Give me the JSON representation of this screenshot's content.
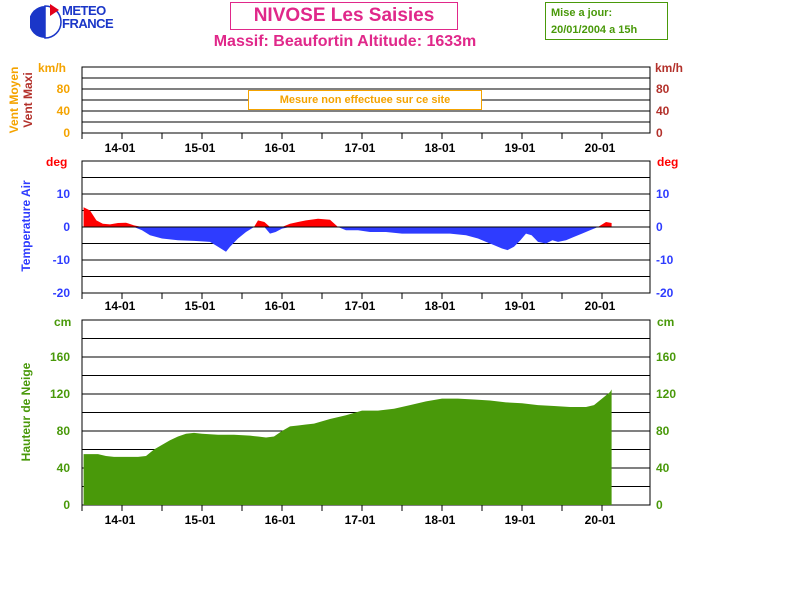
{
  "header": {
    "logo_line1": "METEO",
    "logo_line2": "FRANCE",
    "title": "NIVOSE Les Saisies",
    "subtitle": "Massif: Beaufortin Altitude: 1633m",
    "update_label": "Mise a jour:",
    "update_value": "20/01/2004 a 15h",
    "wind_notice": "Mesure non effectuee sur ce site"
  },
  "colors": {
    "snow": "#49990a",
    "temp_positive": "#ff0000",
    "temp_negative": "#2e3cff",
    "wind_mean": "#f4a300",
    "wind_max": "#b3312b",
    "title": "#e0288a",
    "temp_unit": "#ff0000",
    "temp_ticks": "#2e3cff"
  },
  "chart_data": [
    {
      "type": "line",
      "title": "",
      "ylabel_left": "Vent Moyen",
      "ylabel_right": "Vent Maxi",
      "unit_left": "km/h",
      "unit_right": "km/h",
      "yticks": [
        "0",
        "40",
        "80"
      ],
      "ylim": [
        0,
        120
      ],
      "xticks": [
        "14-01",
        "15-01",
        "16-01",
        "17-01",
        "18-01",
        "19-01",
        "20-01"
      ],
      "grid": true,
      "series": []
    },
    {
      "type": "area",
      "ylabel": "Temperature Air",
      "unit": "deg",
      "yticks": [
        "-20",
        "-10",
        "0",
        "10"
      ],
      "ylim": [
        -20,
        20
      ],
      "xticks": [
        "14-01",
        "15-01",
        "16-01",
        "17-01",
        "18-01",
        "19-01",
        "20-01"
      ],
      "xlim": [
        13.5,
        20.6
      ],
      "grid": true,
      "x": [
        13.52,
        13.6,
        13.68,
        13.76,
        13.85,
        13.95,
        14.05,
        14.15,
        14.25,
        14.35,
        14.5,
        14.7,
        14.9,
        15.1,
        15.2,
        15.3,
        15.35,
        15.45,
        15.55,
        15.65,
        15.7,
        15.78,
        15.85,
        15.92,
        16.0,
        16.1,
        16.2,
        16.3,
        16.45,
        16.6,
        16.7,
        16.8,
        16.95,
        17.1,
        17.3,
        17.5,
        17.7,
        17.9,
        18.1,
        18.3,
        18.45,
        18.55,
        18.65,
        18.75,
        18.82,
        18.9,
        18.98,
        19.05,
        19.12,
        19.2,
        19.3,
        19.38,
        19.45,
        19.55,
        19.65,
        19.75,
        19.85,
        19.95,
        20.05,
        20.12
      ],
      "values": [
        6,
        5,
        2,
        1,
        0.8,
        1.2,
        1.3,
        0.5,
        -1,
        -2.5,
        -3.5,
        -4,
        -4.2,
        -4.5,
        -6,
        -7.5,
        -6,
        -3.5,
        -1.5,
        0,
        2,
        1.5,
        -2,
        -1.5,
        -0.5,
        1,
        1.5,
        2,
        2.5,
        2.2,
        0,
        -1,
        -1,
        -1.5,
        -1.5,
        -2,
        -2,
        -2,
        -2,
        -2.5,
        -3.5,
        -4.5,
        -5.5,
        -6.5,
        -7,
        -6,
        -4,
        -2,
        -2.5,
        -4.5,
        -5,
        -4,
        -4.5,
        -4,
        -3,
        -2,
        -1,
        0,
        1.5,
        1.2
      ]
    },
    {
      "type": "area",
      "ylabel": "Hauteur de Neige",
      "unit": "cm",
      "yticks": [
        "0",
        "40",
        "80",
        "120",
        "160"
      ],
      "ylim": [
        0,
        200
      ],
      "xticks": [
        "14-01",
        "15-01",
        "16-01",
        "17-01",
        "18-01",
        "19-01",
        "20-01"
      ],
      "xlim": [
        13.5,
        20.6
      ],
      "grid": true,
      "x": [
        13.52,
        13.7,
        13.8,
        13.9,
        14.1,
        14.2,
        14.3,
        14.4,
        14.5,
        14.6,
        14.7,
        14.8,
        14.9,
        15.0,
        15.2,
        15.4,
        15.6,
        15.7,
        15.8,
        15.9,
        16.0,
        16.1,
        16.2,
        16.3,
        16.4,
        16.6,
        16.8,
        17.0,
        17.2,
        17.4,
        17.6,
        17.8,
        18.0,
        18.2,
        18.4,
        18.6,
        18.8,
        19.0,
        19.2,
        19.4,
        19.6,
        19.8,
        19.9,
        20.0,
        20.1,
        20.12
      ],
      "values": [
        55,
        55,
        53,
        52,
        52,
        52,
        53,
        60,
        65,
        70,
        74,
        77,
        78,
        77,
        76,
        76,
        75,
        74,
        73,
        74,
        80,
        85,
        86,
        87,
        88,
        93,
        97,
        102,
        102,
        104,
        108,
        112,
        115,
        115,
        114,
        113,
        111,
        110,
        108,
        107,
        106,
        106,
        108,
        115,
        122,
        125
      ]
    }
  ]
}
